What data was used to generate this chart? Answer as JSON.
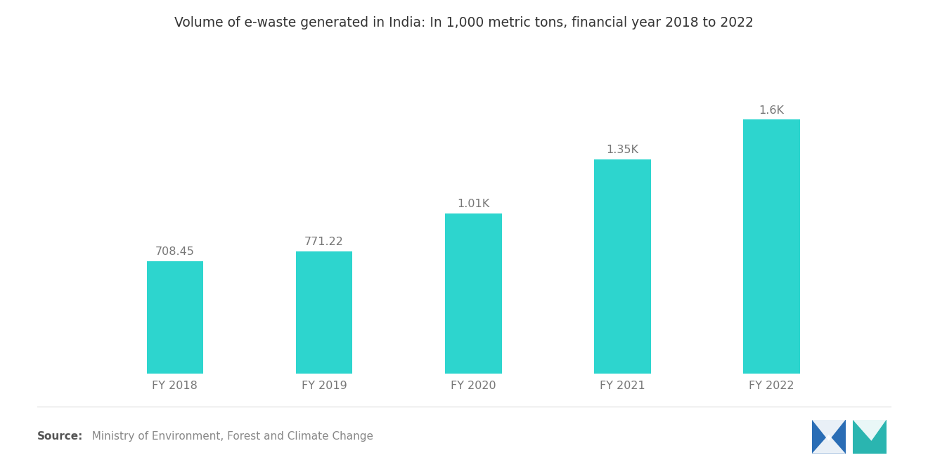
{
  "title": "Volume of e-waste generated in India: In 1,000 metric tons, financial year 2018 to 2022",
  "categories": [
    "FY 2018",
    "FY 2019",
    "FY 2020",
    "FY 2021",
    "FY 2022"
  ],
  "values": [
    708.45,
    771.22,
    1010.0,
    1350.0,
    1600.0
  ],
  "labels": [
    "708.45",
    "771.22",
    "1.01K",
    "1.35K",
    "1.6K"
  ],
  "bar_color": "#2DD5CE",
  "background_color": "#ffffff",
  "title_fontsize": 13.5,
  "label_fontsize": 11.5,
  "tick_fontsize": 11.5,
  "source_bold": "Source:",
  "source_text": "  Ministry of Environment, Forest and Climate Change",
  "ylim": [
    0,
    2000
  ],
  "bar_width": 0.38,
  "logo_colors": [
    "#2a6db5",
    "#2ab5b0"
  ],
  "label_color": "#777777",
  "tick_color": "#777777",
  "title_color": "#333333",
  "source_color": "#888888",
  "source_bold_color": "#555555"
}
